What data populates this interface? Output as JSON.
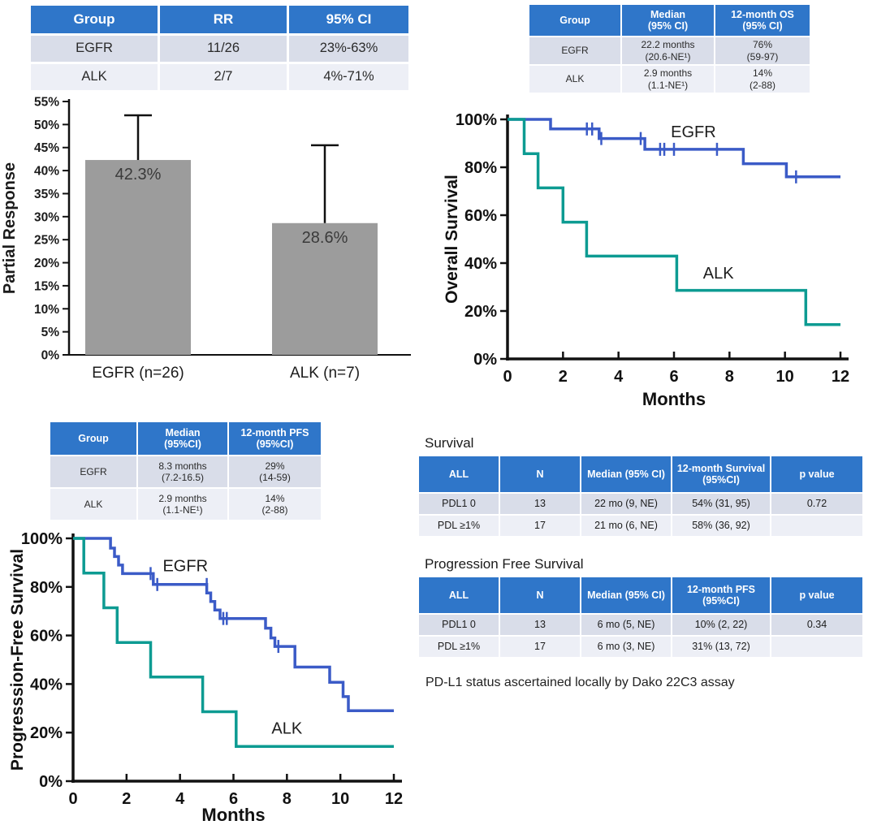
{
  "colors": {
    "table_header": "#2f76c9",
    "row_odd": "#d9dde9",
    "row_even": "#edeff6",
    "km_egfr": "#3b5bc7",
    "km_alk": "#0d9b92",
    "bar": "#9c9c9c",
    "axis": "#111111"
  },
  "tables": {
    "rr": {
      "headers": [
        "Group",
        "RR",
        "95% CI"
      ],
      "rows": [
        [
          "EGFR",
          "11/26",
          "23%-63%"
        ],
        [
          "ALK",
          "2/7",
          "4%-71%"
        ]
      ]
    },
    "os": {
      "headers": [
        "Group",
        "Median\n(95% CI)",
        "12-month OS\n(95% CI)"
      ],
      "rows": [
        [
          "EGFR",
          "22.2 months\n(20.6-NE¹)",
          "76%\n(59-97)"
        ],
        [
          "ALK",
          "2.9 months\n(1.1-NE¹)",
          "14%\n(2-88)"
        ]
      ]
    },
    "pfs": {
      "headers": [
        "Group",
        "Median\n(95%CI)",
        "12-month PFS\n(95%CI)"
      ],
      "rows": [
        [
          "EGFR",
          "8.3 months\n(7.2-16.5)",
          "29%\n(14-59)"
        ],
        [
          "ALK",
          "2.9 months\n(1.1-NE¹)",
          "14%\n(2-88)"
        ]
      ]
    },
    "survival_pdl1": {
      "title": "Survival",
      "headers": [
        "ALL",
        "N",
        "Median (95% CI)",
        "12-month Survival\n(95%CI)",
        "p value"
      ],
      "rows": [
        [
          "PDL1 0",
          "13",
          "22 mo (9, NE)",
          "54% (31, 95)",
          "0.72"
        ],
        [
          "PDL ≥1%",
          "17",
          "21 mo (6, NE)",
          "58% (36, 92)",
          ""
        ]
      ]
    },
    "pfs_pdl1": {
      "title": "Progression Free Survival",
      "headers": [
        "ALL",
        "N",
        "Median (95% CI)",
        "12-month PFS\n(95%CI)",
        "p value"
      ],
      "rows": [
        [
          "PDL1 0",
          "13",
          "6 mo (5, NE)",
          "10% (2, 22)",
          "0.34"
        ],
        [
          "PDL ≥1%",
          "17",
          "6 mo (3, NE)",
          "31% (13, 72)",
          ""
        ]
      ]
    }
  },
  "footnote": "PD-L1 status ascertained locally by Dako 22C3 assay",
  "chart_data": [
    {
      "id": "bar_partial_response",
      "type": "bar",
      "title": "",
      "xlabel": "",
      "ylabel": "Partial Response",
      "categories": [
        "EGFR (n=26)",
        "ALK (n=7)"
      ],
      "values": [
        42.3,
        28.6
      ],
      "value_labels": [
        "42.3%",
        "28.6%"
      ],
      "error_high": [
        52,
        45.5
      ],
      "ylim": [
        0,
        55
      ],
      "ytick_step": 5,
      "bar_color": "#9c9c9c",
      "grid": false,
      "legend": "none"
    },
    {
      "id": "km_overall_survival",
      "type": "line",
      "title": "",
      "xlabel": "Months",
      "ylabel": "Overall Survival",
      "xlim": [
        0,
        12
      ],
      "ylim": [
        0,
        100
      ],
      "xticks": [
        0,
        2,
        4,
        6,
        8,
        10,
        12
      ],
      "yticks": [
        0,
        20,
        40,
        60,
        80,
        100
      ],
      "grid": false,
      "legend": "inline-labels",
      "series": [
        {
          "name": "EGFR",
          "color": "#3b5bc7",
          "label_pos": [
            6.7,
            92.5
          ],
          "points": [
            [
              0,
              100
            ],
            [
              1.55,
              100
            ],
            [
              1.55,
              96
            ],
            [
              3.3,
              96
            ],
            [
              3.3,
              92
            ],
            [
              4.95,
              92
            ],
            [
              4.95,
              87.5
            ],
            [
              8.5,
              87.5
            ],
            [
              8.5,
              81.5
            ],
            [
              10.05,
              81.5
            ],
            [
              10.05,
              76
            ],
            [
              12,
              76
            ]
          ],
          "censors": [
            [
              2.86,
              96
            ],
            [
              3.05,
              96
            ],
            [
              3.38,
              92
            ],
            [
              4.8,
              92
            ],
            [
              5.5,
              87.5
            ],
            [
              5.65,
              87.5
            ],
            [
              6.0,
              87.5
            ],
            [
              7.55,
              87.5
            ],
            [
              10.4,
              76
            ]
          ]
        },
        {
          "name": "ALK",
          "color": "#0d9b92",
          "label_pos": [
            7.6,
            33.5
          ],
          "points": [
            [
              0,
              100
            ],
            [
              0.6,
              100
            ],
            [
              0.6,
              85.7
            ],
            [
              1.1,
              85.7
            ],
            [
              1.1,
              71.4
            ],
            [
              2.0,
              71.4
            ],
            [
              2.0,
              57.1
            ],
            [
              2.85,
              57.1
            ],
            [
              2.85,
              42.9
            ],
            [
              6.1,
              42.9
            ],
            [
              6.1,
              28.6
            ],
            [
              10.75,
              28.6
            ],
            [
              10.75,
              14.3
            ],
            [
              12,
              14.3
            ]
          ],
          "censors": []
        }
      ]
    },
    {
      "id": "km_progression_free_survival",
      "type": "line",
      "title": "",
      "xlabel": "Months",
      "ylabel": "Progresssion-Free Survival",
      "xlim": [
        0,
        12
      ],
      "ylim": [
        0,
        100
      ],
      "xticks": [
        0,
        2,
        4,
        6,
        8,
        10,
        12
      ],
      "yticks": [
        0,
        20,
        40,
        60,
        80,
        100
      ],
      "grid": false,
      "legend": "inline-labels",
      "series": [
        {
          "name": "EGFR",
          "color": "#3b5bc7",
          "label_pos": [
            4.2,
            86.5
          ],
          "points": [
            [
              0,
              100
            ],
            [
              1.4,
              100
            ],
            [
              1.4,
              96
            ],
            [
              1.55,
              96
            ],
            [
              1.55,
              92.5
            ],
            [
              1.7,
              92.5
            ],
            [
              1.7,
              89
            ],
            [
              1.85,
              89
            ],
            [
              1.85,
              85.5
            ],
            [
              3.0,
              85.5
            ],
            [
              3.0,
              81
            ],
            [
              5.0,
              81
            ],
            [
              5.0,
              77.5
            ],
            [
              5.15,
              77.5
            ],
            [
              5.15,
              74
            ],
            [
              5.3,
              74
            ],
            [
              5.3,
              70.5
            ],
            [
              5.5,
              70.5
            ],
            [
              5.5,
              67
            ],
            [
              7.2,
              67
            ],
            [
              7.2,
              63
            ],
            [
              7.4,
              63
            ],
            [
              7.4,
              59
            ],
            [
              7.55,
              59
            ],
            [
              7.55,
              55.5
            ],
            [
              8.3,
              55.5
            ],
            [
              8.3,
              47
            ],
            [
              9.6,
              47
            ],
            [
              9.6,
              40.7
            ],
            [
              10.1,
              40.7
            ],
            [
              10.1,
              34.8
            ],
            [
              10.3,
              34.8
            ],
            [
              10.3,
              29
            ],
            [
              12,
              29
            ]
          ],
          "censors": [
            [
              2.9,
              85.5
            ],
            [
              3.15,
              81
            ],
            [
              5.0,
              81
            ],
            [
              5.62,
              67
            ],
            [
              5.75,
              67
            ],
            [
              7.68,
              55.5
            ]
          ]
        },
        {
          "name": "ALK",
          "color": "#0d9b92",
          "label_pos": [
            8.0,
            19.5
          ],
          "points": [
            [
              0,
              100
            ],
            [
              0.4,
              100
            ],
            [
              0.4,
              85.7
            ],
            [
              1.15,
              85.7
            ],
            [
              1.15,
              71.4
            ],
            [
              1.65,
              71.4
            ],
            [
              1.65,
              57.1
            ],
            [
              2.9,
              57.1
            ],
            [
              2.9,
              42.9
            ],
            [
              4.85,
              42.9
            ],
            [
              4.85,
              28.6
            ],
            [
              6.1,
              28.6
            ],
            [
              6.1,
              14.3
            ],
            [
              12,
              14.3
            ]
          ],
          "censors": []
        }
      ]
    }
  ]
}
